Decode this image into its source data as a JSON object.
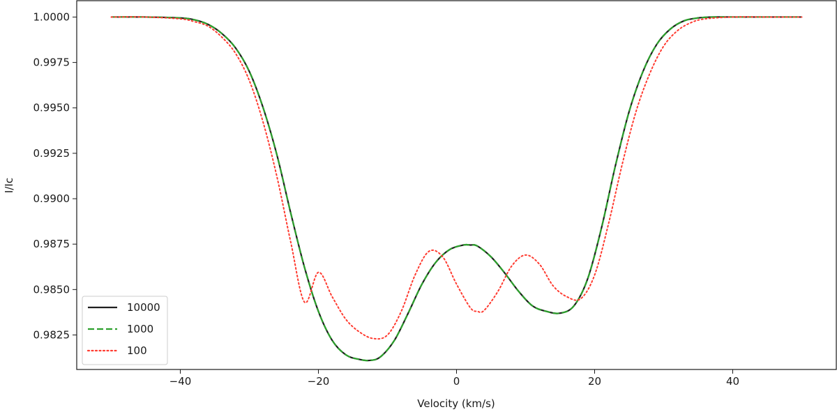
{
  "chart_data": {
    "type": "line",
    "title": "",
    "xlabel": "Velocity (km/s)",
    "ylabel": "I/Ic",
    "xlim": [
      -55,
      55
    ],
    "ylim": [
      0.9806,
      1.0009
    ],
    "xticks": [
      -40,
      -20,
      0,
      20,
      40
    ],
    "xtick_labels": [
      "−40",
      "−20",
      "0",
      "20",
      "40"
    ],
    "yticks": [
      0.9825,
      0.985,
      0.9875,
      0.99,
      0.9925,
      0.995,
      0.9975,
      1.0
    ],
    "ytick_labels": [
      "0.9825",
      "0.9850",
      "0.9875",
      "0.9900",
      "0.9925",
      "0.9950",
      "0.9975",
      "1.0000"
    ],
    "grid": false,
    "legend_position": "lower-left",
    "series": [
      {
        "name": "10000",
        "color": "#1f1f1f",
        "style": "solid",
        "x": [
          -50,
          -45,
          -40,
          -38,
          -36,
          -34,
          -32,
          -30,
          -28,
          -26,
          -24,
          -22,
          -20,
          -18,
          -16,
          -14,
          -12.5,
          -11,
          -9,
          -7,
          -5,
          -3,
          -1,
          1,
          2,
          3,
          5,
          7,
          9,
          11,
          13,
          15,
          17,
          19,
          21,
          23,
          25,
          27,
          29,
          31,
          33,
          35,
          37,
          40,
          45,
          50
        ],
        "y": [
          1.0,
          1.0,
          0.99995,
          0.99985,
          0.9996,
          0.9991,
          0.9983,
          0.997,
          0.995,
          0.9924,
          0.9892,
          0.9862,
          0.9838,
          0.9822,
          0.9814,
          0.98115,
          0.9811,
          0.9813,
          0.9822,
          0.9837,
          0.9853,
          0.9865,
          0.9872,
          0.98745,
          0.98745,
          0.9874,
          0.9868,
          0.9859,
          0.9849,
          0.9841,
          0.9838,
          0.9837,
          0.9841,
          0.9856,
          0.9884,
          0.9918,
          0.9948,
          0.997,
          0.9985,
          0.99935,
          0.9998,
          0.99995,
          1.0,
          1.0,
          1.0,
          1.0
        ]
      },
      {
        "name": "1000",
        "color": "#2ca02c",
        "style": "dashed",
        "x": [
          -50,
          -45,
          -40,
          -38,
          -36,
          -34,
          -32,
          -30,
          -28,
          -26,
          -24,
          -22,
          -20,
          -18,
          -16,
          -14,
          -12.5,
          -11,
          -9,
          -7,
          -5,
          -3,
          -1,
          1,
          2,
          3,
          5,
          7,
          9,
          11,
          13,
          15,
          17,
          19,
          21,
          23,
          25,
          27,
          29,
          31,
          33,
          35,
          37,
          40,
          45,
          50
        ],
        "y": [
          1.0,
          1.0,
          0.99995,
          0.99985,
          0.9996,
          0.9991,
          0.9983,
          0.997,
          0.995,
          0.9924,
          0.9892,
          0.9862,
          0.9838,
          0.9822,
          0.9814,
          0.98115,
          0.9811,
          0.9813,
          0.9822,
          0.9837,
          0.9853,
          0.9865,
          0.9872,
          0.98745,
          0.98745,
          0.9874,
          0.9868,
          0.9859,
          0.9849,
          0.9841,
          0.9838,
          0.9837,
          0.9841,
          0.9856,
          0.9884,
          0.9918,
          0.9948,
          0.997,
          0.9985,
          0.99935,
          0.9998,
          0.99995,
          1.0,
          1.0,
          1.0,
          1.0
        ]
      },
      {
        "name": "100",
        "color": "#ff3b30",
        "style": "dotted",
        "x": [
          -50,
          -45,
          -40,
          -38,
          -36,
          -34,
          -32,
          -30,
          -28,
          -26,
          -24,
          -22,
          -20,
          -18,
          -16,
          -14,
          -12,
          -10,
          -8,
          -6,
          -4,
          -2,
          0,
          2,
          3,
          4,
          6,
          8,
          10,
          12,
          14,
          16,
          18,
          20,
          22,
          24,
          26,
          28,
          30,
          32,
          34,
          36,
          40,
          45,
          50
        ],
        "y": [
          1.0,
          1.0,
          0.9999,
          0.99975,
          0.9995,
          0.9989,
          0.998,
          0.9965,
          0.9942,
          0.9912,
          0.9876,
          0.9843,
          0.98595,
          0.9846,
          0.98335,
          0.98265,
          0.9823,
          0.9825,
          0.9838,
          0.9858,
          0.9871,
          0.9868,
          0.9853,
          0.984,
          0.9838,
          0.98385,
          0.9849,
          0.9863,
          0.9869,
          0.9864,
          0.9852,
          0.9846,
          0.9845,
          0.9858,
          0.9886,
          0.9919,
          0.9948,
          0.9969,
          0.9984,
          0.99925,
          0.9997,
          0.9999,
          1.0,
          1.0,
          1.0
        ]
      }
    ]
  }
}
